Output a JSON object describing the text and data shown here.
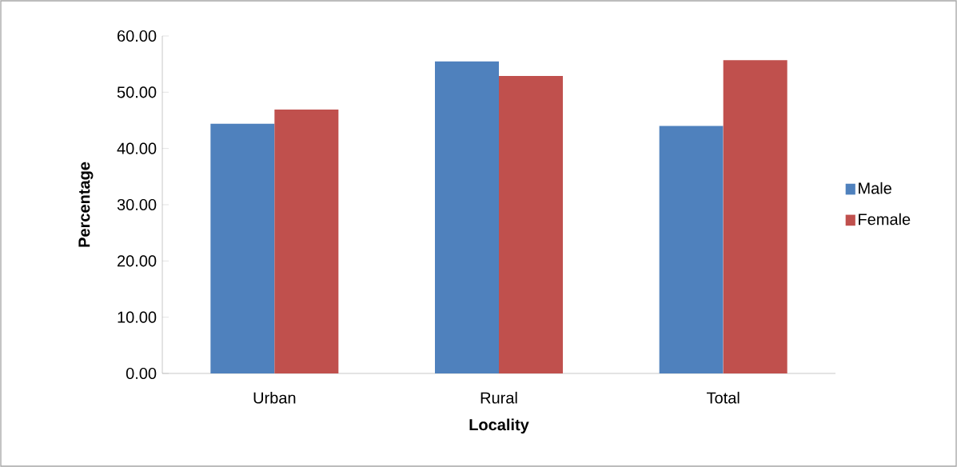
{
  "chart_data": {
    "type": "bar",
    "xlabel": "Locality",
    "ylabel": "Percentage",
    "categories": [
      "Urban",
      "Rural",
      "Total"
    ],
    "series": [
      {
        "name": "Male",
        "color": "#4f81bd",
        "values": [
          44.4,
          55.5,
          44.0
        ]
      },
      {
        "name": "Female",
        "color": "#c0504d",
        "values": [
          46.9,
          52.9,
          55.7
        ]
      }
    ],
    "ylim": [
      0,
      60
    ],
    "yticks": [
      {
        "value": 0,
        "label": "0.00"
      },
      {
        "value": 10,
        "label": "10.00"
      },
      {
        "value": 20,
        "label": "20.00"
      },
      {
        "value": 30,
        "label": "30.00"
      },
      {
        "value": 40,
        "label": "40.00"
      },
      {
        "value": 50,
        "label": "50.00"
      },
      {
        "value": 60,
        "label": "60.00"
      }
    ],
    "grid": false,
    "legend": "right"
  }
}
